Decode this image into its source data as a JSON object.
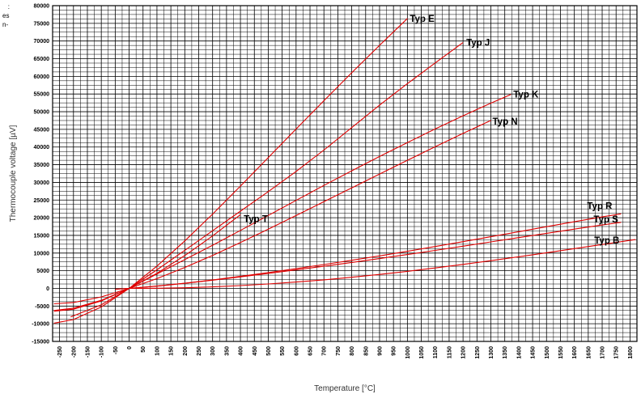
{
  "corner_note": [
    ":",
    "es",
    "n-"
  ],
  "chart_data": {
    "type": "line",
    "title": "",
    "xlabel": "Temperature [°C]",
    "ylabel": "Thermocouple voltage [µV]",
    "xlim": [
      -275,
      1825
    ],
    "ylim": [
      -15000,
      80000
    ],
    "x_ticks": [
      -250,
      -200,
      -150,
      -100,
      -50,
      0,
      50,
      100,
      150,
      200,
      250,
      300,
      350,
      400,
      450,
      500,
      550,
      600,
      650,
      700,
      750,
      800,
      850,
      900,
      950,
      1000,
      1050,
      1100,
      1150,
      1200,
      1250,
      1300,
      1350,
      1400,
      1450,
      1500,
      1550,
      1600,
      1650,
      1700,
      1750,
      1800
    ],
    "y_ticks": [
      -15000,
      -10000,
      -5000,
      0,
      5000,
      10000,
      15000,
      20000,
      25000,
      30000,
      35000,
      40000,
      45000,
      50000,
      55000,
      60000,
      65000,
      70000,
      75000,
      80000
    ],
    "grid": true,
    "series_color": "#e00000",
    "series": [
      {
        "name": "Typ E",
        "points": [
          [
            -270,
            -9835
          ],
          [
            -200,
            -8825
          ],
          [
            -100,
            -5237
          ],
          [
            0,
            0
          ],
          [
            100,
            6319
          ],
          [
            200,
            13421
          ],
          [
            300,
            21036
          ],
          [
            400,
            28946
          ],
          [
            500,
            37005
          ],
          [
            600,
            45093
          ],
          [
            700,
            53112
          ],
          [
            800,
            61017
          ],
          [
            900,
            68787
          ],
          [
            1000,
            76373
          ]
        ]
      },
      {
        "name": "Typ J",
        "points": [
          [
            -210,
            -8095
          ],
          [
            -100,
            -4633
          ],
          [
            0,
            0
          ],
          [
            100,
            5269
          ],
          [
            200,
            10779
          ],
          [
            300,
            16327
          ],
          [
            400,
            21848
          ],
          [
            500,
            27393
          ],
          [
            600,
            33102
          ],
          [
            700,
            39132
          ],
          [
            800,
            45494
          ],
          [
            900,
            51877
          ],
          [
            1000,
            57953
          ],
          [
            1100,
            63792
          ],
          [
            1200,
            69553
          ]
        ]
      },
      {
        "name": "Typ K",
        "points": [
          [
            -270,
            -6458
          ],
          [
            -200,
            -5891
          ],
          [
            -100,
            -3554
          ],
          [
            0,
            0
          ],
          [
            100,
            4096
          ],
          [
            200,
            8138
          ],
          [
            300,
            12209
          ],
          [
            400,
            16397
          ],
          [
            500,
            20644
          ],
          [
            600,
            24905
          ],
          [
            700,
            29129
          ],
          [
            800,
            33275
          ],
          [
            900,
            37326
          ],
          [
            1000,
            41276
          ],
          [
            1100,
            45119
          ],
          [
            1200,
            48838
          ],
          [
            1300,
            52410
          ],
          [
            1372,
            54886
          ]
        ]
      },
      {
        "name": "Typ N",
        "points": [
          [
            -270,
            -4345
          ],
          [
            -200,
            -3990
          ],
          [
            -100,
            -2407
          ],
          [
            0,
            0
          ],
          [
            100,
            2774
          ],
          [
            200,
            5913
          ],
          [
            300,
            9341
          ],
          [
            400,
            12974
          ],
          [
            500,
            16748
          ],
          [
            600,
            20613
          ],
          [
            700,
            24527
          ],
          [
            800,
            28455
          ],
          [
            900,
            32371
          ],
          [
            1000,
            36256
          ],
          [
            1100,
            40087
          ],
          [
            1200,
            43846
          ],
          [
            1300,
            47513
          ]
        ]
      },
      {
        "name": "Typ T",
        "points": [
          [
            -270,
            -6258
          ],
          [
            -200,
            -5603
          ],
          [
            -100,
            -3379
          ],
          [
            0,
            0
          ],
          [
            100,
            4279
          ],
          [
            200,
            9288
          ],
          [
            300,
            14862
          ],
          [
            400,
            20872
          ]
        ]
      },
      {
        "name": "Typ R",
        "points": [
          [
            -50,
            -226
          ],
          [
            0,
            0
          ],
          [
            100,
            647
          ],
          [
            200,
            1469
          ],
          [
            300,
            2401
          ],
          [
            400,
            3408
          ],
          [
            500,
            4471
          ],
          [
            600,
            5583
          ],
          [
            700,
            6743
          ],
          [
            800,
            7950
          ],
          [
            900,
            9205
          ],
          [
            1000,
            10506
          ],
          [
            1100,
            11850
          ],
          [
            1200,
            13228
          ],
          [
            1300,
            14629
          ],
          [
            1400,
            16040
          ],
          [
            1500,
            17451
          ],
          [
            1600,
            18849
          ],
          [
            1700,
            20222
          ],
          [
            1768,
            21101
          ]
        ]
      },
      {
        "name": "Typ S",
        "points": [
          [
            -50,
            -236
          ],
          [
            0,
            0
          ],
          [
            100,
            646
          ],
          [
            200,
            1441
          ],
          [
            300,
            2323
          ],
          [
            400,
            3259
          ],
          [
            500,
            4233
          ],
          [
            600,
            5239
          ],
          [
            700,
            6275
          ],
          [
            800,
            7345
          ],
          [
            900,
            8449
          ],
          [
            1000,
            9587
          ],
          [
            1100,
            10757
          ],
          [
            1200,
            11951
          ],
          [
            1300,
            13159
          ],
          [
            1400,
            14373
          ],
          [
            1500,
            15582
          ],
          [
            1600,
            16777
          ],
          [
            1700,
            17947
          ],
          [
            1768,
            18693
          ]
        ]
      },
      {
        "name": "Typ B",
        "points": [
          [
            0,
            0
          ],
          [
            100,
            33
          ],
          [
            200,
            178
          ],
          [
            300,
            431
          ],
          [
            400,
            787
          ],
          [
            500,
            1242
          ],
          [
            600,
            1792
          ],
          [
            700,
            2431
          ],
          [
            800,
            3154
          ],
          [
            900,
            3957
          ],
          [
            1000,
            4834
          ],
          [
            1100,
            5780
          ],
          [
            1200,
            6786
          ],
          [
            1300,
            7848
          ],
          [
            1400,
            8956
          ],
          [
            1500,
            10099
          ],
          [
            1600,
            11263
          ],
          [
            1700,
            12433
          ],
          [
            1800,
            13591
          ],
          [
            1820,
            13820
          ]
        ]
      }
    ]
  }
}
